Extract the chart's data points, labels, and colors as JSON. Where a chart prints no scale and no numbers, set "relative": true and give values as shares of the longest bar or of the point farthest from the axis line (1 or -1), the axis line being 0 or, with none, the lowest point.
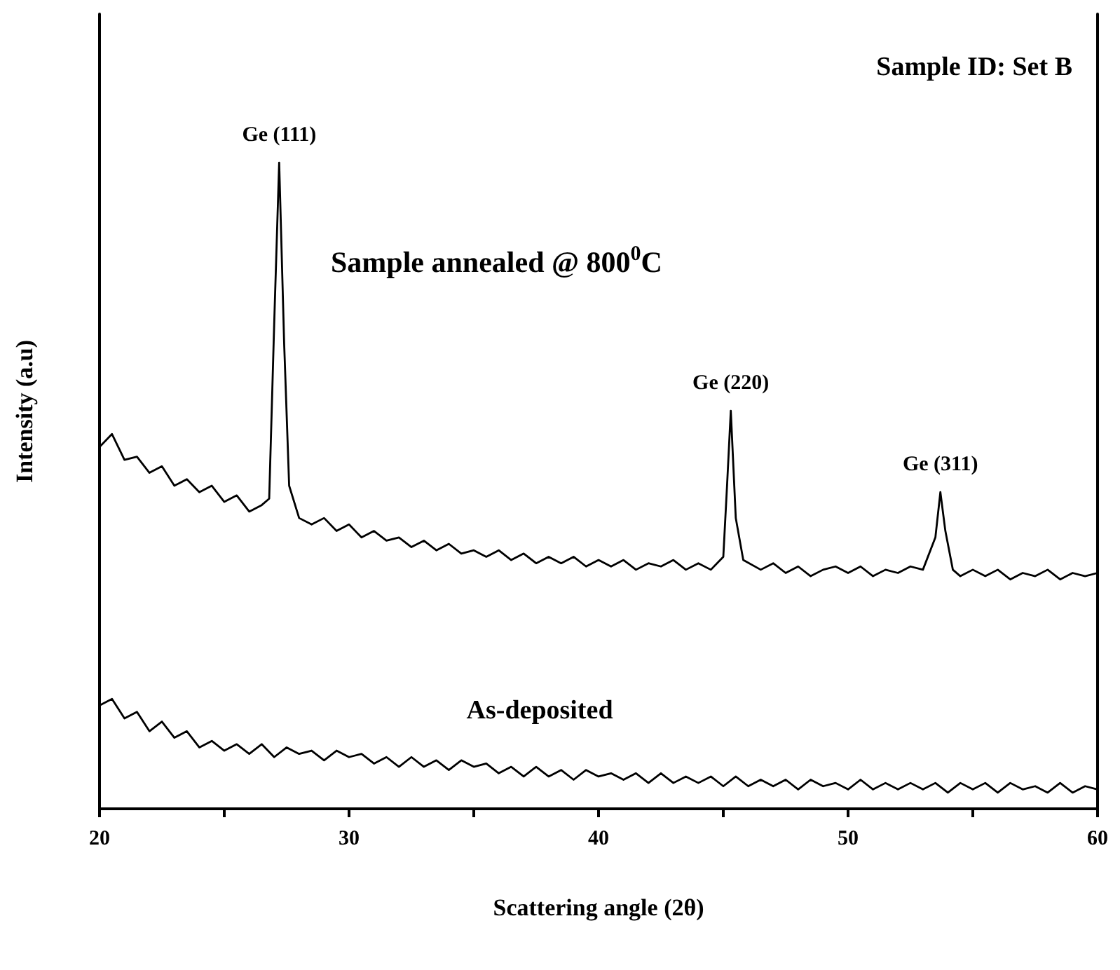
{
  "chart_data": {
    "type": "line",
    "relative": true,
    "xlabel": "Scattering angle (2θ)",
    "ylabel": "Intensity (a.u)",
    "xlim": [
      20,
      60
    ],
    "xticks": [
      20,
      {
        "value": 25,
        "label": null
      },
      30,
      {
        "value": 35,
        "label": null
      },
      40,
      {
        "value": 45,
        "label": null
      },
      50,
      {
        "value": 55,
        "label": null
      },
      60
    ],
    "grid": false,
    "legend": false,
    "marker": "none",
    "line_style": "solid",
    "annotations": [
      "Sample ID: Set B",
      "Sample annealed @ 800$^{0}$C",
      {
        "text": "Ge (111)",
        "x": 27.2,
        "y": 1.0
      },
      {
        "text": "Ge (220)",
        "x": 45.3,
        "y": 0.616
      },
      {
        "text": "Ge (311)",
        "x": 53.7,
        "y": 0.49
      }
    ],
    "series": [
      {
        "color": "#000000",
        "x": [
          20,
          20.5,
          21,
          21.5,
          22,
          22.5,
          23,
          23.5,
          24,
          24.5,
          25,
          25.5,
          26,
          26.5,
          26.8,
          27.0,
          27.2,
          27.4,
          27.6,
          28,
          28.5,
          29,
          29.5,
          30,
          30.5,
          31,
          31.5,
          32,
          32.5,
          33,
          33.5,
          34,
          34.5,
          35,
          35.5,
          36,
          36.5,
          37,
          37.5,
          38,
          38.5,
          39,
          39.5,
          40,
          40.5,
          41,
          41.5,
          42,
          42.5,
          43,
          43.5,
          44,
          44.5,
          45,
          45.15,
          45.3,
          45.5,
          45.8,
          46.5,
          47,
          47.5,
          48,
          48.5,
          49,
          49.5,
          50,
          50.5,
          51,
          51.5,
          52,
          52.5,
          53,
          53.5,
          53.7,
          53.9,
          54.2,
          54.5,
          55,
          55.5,
          56,
          56.5,
          57,
          57.5,
          58,
          58.5,
          59,
          59.5,
          60
        ],
        "values": [
          0.56,
          0.58,
          0.54,
          0.545,
          0.52,
          0.53,
          0.5,
          0.51,
          0.49,
          0.5,
          0.475,
          0.485,
          0.46,
          0.47,
          0.48,
          0.75,
          1.0,
          0.72,
          0.5,
          0.45,
          0.44,
          0.45,
          0.43,
          0.44,
          0.42,
          0.43,
          0.415,
          0.42,
          0.405,
          0.415,
          0.4,
          0.41,
          0.395,
          0.4,
          0.39,
          0.4,
          0.385,
          0.395,
          0.38,
          0.39,
          0.38,
          0.39,
          0.375,
          0.385,
          0.375,
          0.385,
          0.37,
          0.38,
          0.375,
          0.385,
          0.37,
          0.38,
          0.37,
          0.39,
          0.5,
          0.616,
          0.45,
          0.385,
          0.37,
          0.38,
          0.365,
          0.375,
          0.36,
          0.37,
          0.375,
          0.365,
          0.375,
          0.36,
          0.37,
          0.365,
          0.375,
          0.37,
          0.42,
          0.49,
          0.43,
          0.37,
          0.36,
          0.37,
          0.36,
          0.37,
          0.355,
          0.365,
          0.36,
          0.37,
          0.355,
          0.365,
          0.36,
          0.365
        ]
      },
      {
        "name": "As-deposited",
        "color": "#000000",
        "x": [
          20,
          20.5,
          21,
          21.5,
          22,
          22.5,
          23,
          23.5,
          24,
          24.5,
          25,
          25.5,
          26,
          26.5,
          27,
          27.5,
          28,
          28.5,
          29,
          29.5,
          30,
          30.5,
          31,
          31.5,
          32,
          32.5,
          33,
          33.5,
          34,
          34.5,
          35,
          35.5,
          36,
          36.5,
          37,
          37.5,
          38,
          38.5,
          39,
          39.5,
          40,
          40.5,
          41,
          41.5,
          42,
          42.5,
          43,
          43.5,
          44,
          44.5,
          45,
          45.5,
          46,
          46.5,
          47,
          47.5,
          48,
          48.5,
          49,
          49.5,
          50,
          50.5,
          51,
          51.5,
          52,
          52.5,
          53,
          53.5,
          54,
          54.5,
          55,
          55.5,
          56,
          56.5,
          57,
          57.5,
          58,
          58.5,
          59,
          59.5,
          60
        ],
        "values": [
          0.16,
          0.17,
          0.14,
          0.15,
          0.12,
          0.135,
          0.11,
          0.12,
          0.095,
          0.105,
          0.09,
          0.1,
          0.085,
          0.1,
          0.08,
          0.095,
          0.085,
          0.09,
          0.075,
          0.09,
          0.08,
          0.085,
          0.07,
          0.08,
          0.065,
          0.08,
          0.065,
          0.075,
          0.06,
          0.075,
          0.065,
          0.07,
          0.055,
          0.065,
          0.05,
          0.065,
          0.05,
          0.06,
          0.045,
          0.06,
          0.05,
          0.055,
          0.045,
          0.055,
          0.04,
          0.055,
          0.04,
          0.05,
          0.04,
          0.05,
          0.035,
          0.05,
          0.035,
          0.045,
          0.035,
          0.045,
          0.03,
          0.045,
          0.035,
          0.04,
          0.03,
          0.045,
          0.03,
          0.04,
          0.03,
          0.04,
          0.03,
          0.04,
          0.025,
          0.04,
          0.03,
          0.04,
          0.025,
          0.04,
          0.03,
          0.035,
          0.025,
          0.04,
          0.025,
          0.035,
          0.03
        ]
      }
    ]
  }
}
